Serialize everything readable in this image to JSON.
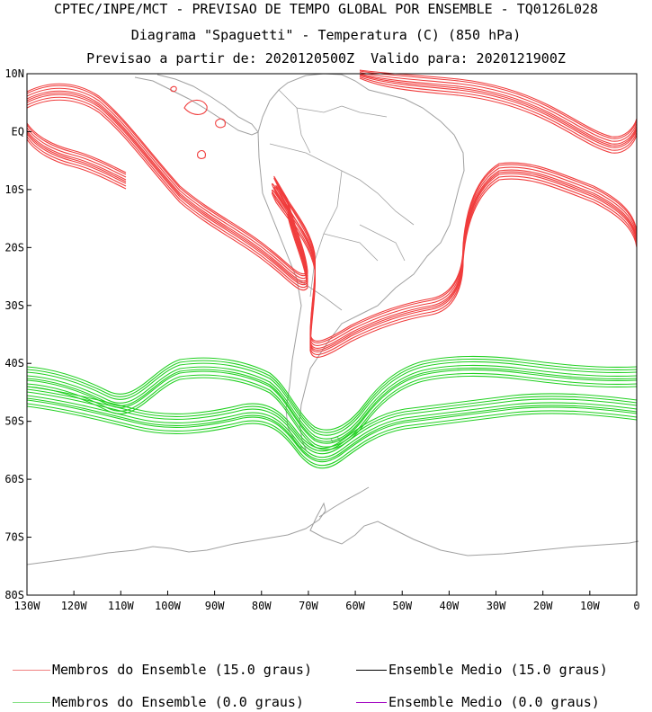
{
  "header": {
    "line1": "CPTEC/INPE/MCT - PREVISAO DE TEMPO GLOBAL POR ENSEMBLE - TQ0126L028",
    "line2": "Diagrama \"Spaguetti\" - Temperatura (C) (850 hPa)",
    "line3": "Previsao a partir de: 2020120500Z  Valido para: 2020121900Z"
  },
  "map": {
    "lat_labels": [
      "10N",
      "EQ",
      "10S",
      "20S",
      "30S",
      "40S",
      "50S",
      "60S",
      "70S",
      "80S"
    ],
    "lon_labels": [
      "130W",
      "120W",
      "110W",
      "100W",
      "90W",
      "80W",
      "70W",
      "60W",
      "50W",
      "40W",
      "30W",
      "20W",
      "10W",
      "0"
    ],
    "lat_range": [
      -80,
      10
    ],
    "lon_range": [
      -130,
      0
    ],
    "coastline_color": "#a0a0a0"
  },
  "legend": {
    "items": [
      {
        "label": "Membros do Ensemble (15.0 graus)",
        "color": "#f08080"
      },
      {
        "label": "Ensemble Medio (15.0 graus)",
        "color": "#000000"
      },
      {
        "label": "Membros do Ensemble (0.0 graus)",
        "color": "#80e080"
      },
      {
        "label": "Ensemble Medio (0.0 graus)",
        "color": "#a000c0"
      }
    ]
  },
  "colors": {
    "red_contours": "#f03c3c",
    "green_contours": "#20d020"
  }
}
